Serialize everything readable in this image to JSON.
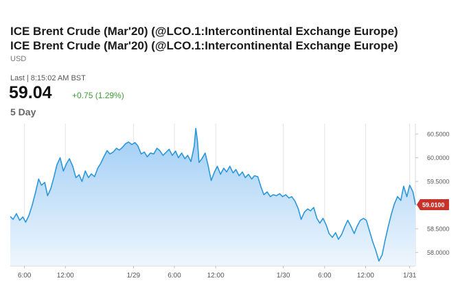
{
  "header": {
    "title_line_1": "ICE Brent Crude (Mar'20) (@LCO.1:Intercontinental Exchange Europe)",
    "title_line_2": "ICE Brent Crude (Mar'20) (@LCO.1:Intercontinental Exchange Europe)",
    "currency": "USD"
  },
  "quote": {
    "last_label": "Last | 8:15:02 AM BST",
    "price": "59.04",
    "change": "+0.75 (1.29%)"
  },
  "range_label": "5 Day",
  "colors": {
    "line": "#2a97da",
    "fill_top": "#9fcdf5",
    "fill_bottom": "#eef6fd",
    "marker": "#c7322a",
    "change": "#3d9b35"
  },
  "chart_data": {
    "type": "area",
    "title": "",
    "xlabel": "",
    "ylabel": "",
    "ylim": [
      57.72,
      60.72
    ],
    "xlim": [
      0,
      100
    ],
    "y_ticks": [
      "58.0000",
      "58.5000",
      "59.0000",
      "59.5000",
      "60.0000",
      "60.5000"
    ],
    "x_ticks": [
      {
        "label": "6:00",
        "x": 3.5
      },
      {
        "label": "12:00",
        "x": 13.6
      },
      {
        "label": "1/29",
        "x": 30.4
      },
      {
        "label": "6:00",
        "x": 40.5
      },
      {
        "label": "12:00",
        "x": 50.7
      },
      {
        "label": "1/30",
        "x": 67.4
      },
      {
        "label": "6:00",
        "x": 77.6
      },
      {
        "label": "12:00",
        "x": 87.7
      },
      {
        "label": "1/31",
        "x": 98.6
      }
    ],
    "grid": true,
    "last_value_label": "59.0100",
    "last_value": 59.01,
    "series": [
      {
        "values": [
          [
            0,
            58.76
          ],
          [
            0.7,
            58.7
          ],
          [
            1.5,
            58.82
          ],
          [
            2.3,
            58.68
          ],
          [
            3.1,
            58.75
          ],
          [
            3.8,
            58.64
          ],
          [
            4.6,
            58.78
          ],
          [
            5.4,
            59.0
          ],
          [
            6.2,
            59.26
          ],
          [
            7.0,
            59.55
          ],
          [
            7.7,
            59.42
          ],
          [
            8.5,
            59.48
          ],
          [
            9.2,
            59.2
          ],
          [
            10.0,
            59.35
          ],
          [
            10.8,
            59.6
          ],
          [
            11.5,
            59.85
          ],
          [
            12.3,
            60.0
          ],
          [
            13.1,
            59.72
          ],
          [
            13.9,
            59.88
          ],
          [
            14.6,
            59.98
          ],
          [
            15.4,
            59.82
          ],
          [
            16.2,
            59.58
          ],
          [
            17.0,
            59.64
          ],
          [
            17.7,
            59.5
          ],
          [
            18.5,
            59.72
          ],
          [
            19.3,
            59.58
          ],
          [
            20.0,
            59.66
          ],
          [
            20.8,
            59.6
          ],
          [
            21.6,
            59.78
          ],
          [
            22.3,
            59.88
          ],
          [
            23.1,
            60.02
          ],
          [
            23.9,
            60.15
          ],
          [
            24.6,
            60.08
          ],
          [
            25.4,
            60.12
          ],
          [
            26.2,
            60.2
          ],
          [
            26.9,
            60.16
          ],
          [
            27.7,
            60.22
          ],
          [
            28.5,
            60.3
          ],
          [
            29.2,
            60.33
          ],
          [
            30.0,
            60.28
          ],
          [
            30.8,
            60.32
          ],
          [
            31.5,
            60.25
          ],
          [
            32.3,
            60.08
          ],
          [
            33.1,
            60.12
          ],
          [
            33.8,
            60.02
          ],
          [
            34.6,
            60.1
          ],
          [
            35.4,
            60.08
          ],
          [
            36.2,
            60.2
          ],
          [
            36.9,
            60.15
          ],
          [
            37.7,
            60.05
          ],
          [
            38.5,
            60.12
          ],
          [
            39.2,
            60.18
          ],
          [
            40.0,
            60.05
          ],
          [
            40.8,
            60.14
          ],
          [
            41.5,
            60.0
          ],
          [
            42.3,
            60.1
          ],
          [
            43.1,
            59.98
          ],
          [
            43.8,
            60.05
          ],
          [
            44.6,
            59.92
          ],
          [
            45.0,
            60.08
          ],
          [
            45.4,
            60.25
          ],
          [
            45.8,
            60.62
          ],
          [
            46.2,
            60.35
          ],
          [
            46.6,
            59.9
          ],
          [
            47.3,
            59.98
          ],
          [
            48.1,
            60.1
          ],
          [
            48.8,
            59.85
          ],
          [
            49.6,
            59.52
          ],
          [
            50.4,
            59.7
          ],
          [
            51.1,
            59.82
          ],
          [
            51.9,
            59.65
          ],
          [
            52.7,
            59.78
          ],
          [
            53.4,
            59.7
          ],
          [
            54.2,
            59.82
          ],
          [
            55.0,
            59.68
          ],
          [
            55.7,
            59.75
          ],
          [
            56.5,
            59.62
          ],
          [
            57.3,
            59.7
          ],
          [
            58.0,
            59.58
          ],
          [
            58.8,
            59.65
          ],
          [
            59.6,
            59.55
          ],
          [
            60.3,
            59.62
          ],
          [
            61.1,
            59.6
          ],
          [
            61.9,
            59.38
          ],
          [
            62.6,
            59.22
          ],
          [
            63.4,
            59.28
          ],
          [
            64.2,
            59.18
          ],
          [
            64.9,
            59.22
          ],
          [
            65.7,
            59.2
          ],
          [
            66.5,
            59.24
          ],
          [
            67.2,
            59.18
          ],
          [
            68.0,
            59.22
          ],
          [
            68.8,
            59.15
          ],
          [
            69.5,
            59.18
          ],
          [
            70.3,
            59.08
          ],
          [
            71.1,
            58.92
          ],
          [
            71.8,
            58.7
          ],
          [
            72.6,
            58.85
          ],
          [
            73.4,
            58.92
          ],
          [
            74.1,
            58.88
          ],
          [
            74.9,
            58.95
          ],
          [
            75.7,
            58.72
          ],
          [
            76.4,
            58.62
          ],
          [
            77.2,
            58.72
          ],
          [
            78.0,
            58.58
          ],
          [
            78.7,
            58.4
          ],
          [
            79.5,
            58.32
          ],
          [
            80.3,
            58.42
          ],
          [
            81.0,
            58.28
          ],
          [
            81.8,
            58.38
          ],
          [
            82.6,
            58.55
          ],
          [
            83.3,
            58.68
          ],
          [
            84.1,
            58.55
          ],
          [
            84.9,
            58.4
          ],
          [
            85.6,
            58.55
          ],
          [
            86.4,
            58.68
          ],
          [
            87.2,
            58.72
          ],
          [
            87.9,
            58.68
          ],
          [
            88.7,
            58.45
          ],
          [
            89.5,
            58.22
          ],
          [
            90.2,
            58.05
          ],
          [
            91.0,
            57.82
          ],
          [
            91.8,
            57.95
          ],
          [
            92.5,
            58.25
          ],
          [
            93.3,
            58.55
          ],
          [
            94.1,
            58.82
          ],
          [
            94.8,
            59.02
          ],
          [
            95.6,
            59.18
          ],
          [
            96.4,
            59.1
          ],
          [
            97.1,
            59.4
          ],
          [
            97.9,
            59.18
          ],
          [
            98.6,
            59.42
          ],
          [
            99.4,
            59.28
          ],
          [
            100,
            59.01
          ]
        ]
      }
    ]
  }
}
